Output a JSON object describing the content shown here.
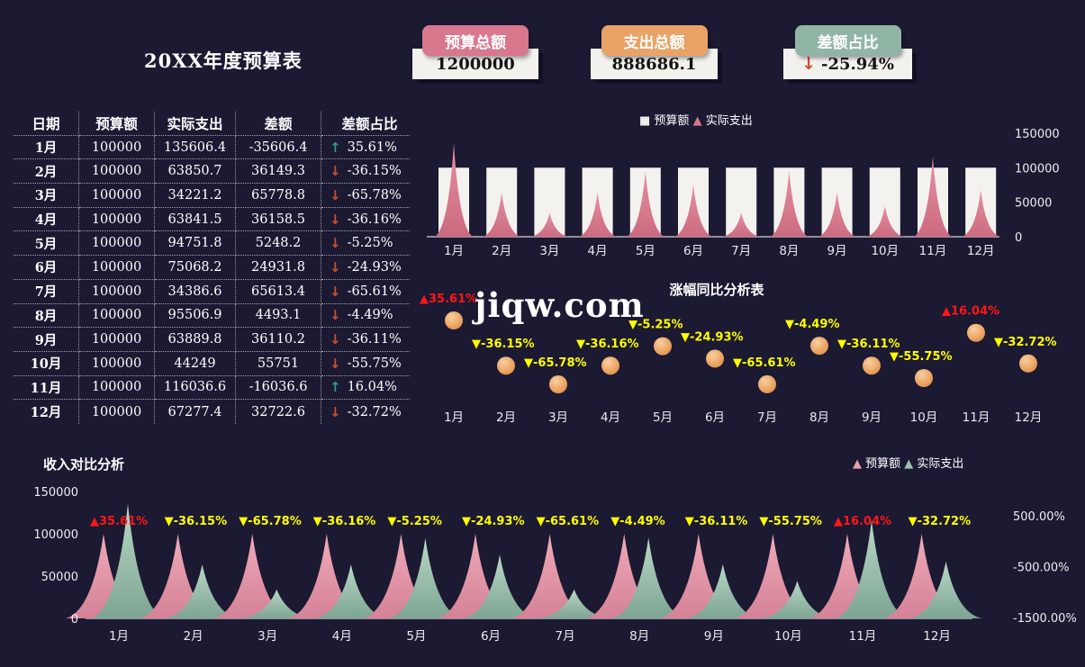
{
  "title": "20XX年度预算表",
  "watermark": "jiqw.com",
  "colors": {
    "background": "#1c1932",
    "card_pink": "#d9778c",
    "card_orange": "#e9a366",
    "card_green": "#90b5a5",
    "bar_white": "#f4f2ef",
    "spike_pink": "#d5788a",
    "area_pink": "#e49aa9",
    "area_green": "#9cc2af",
    "point_orange": "#e89a5c",
    "label_yellow": "#ffff00",
    "label_red": "#ff1616",
    "arrow_up": "#2f9b8a",
    "arrow_down": "#c8502a"
  },
  "summary_cards": [
    {
      "label": "预算总额",
      "value": "1200000",
      "accent": "#d9778c"
    },
    {
      "label": "支出总额",
      "value": "888686.1",
      "accent": "#e9a366"
    },
    {
      "label": "差额占比",
      "value": "-25.94%",
      "accent": "#90b5a5",
      "arrow": "down"
    }
  ],
  "table": {
    "headers": [
      "日期",
      "预算额",
      "实际支出",
      "差额",
      "差额占比"
    ],
    "rows": [
      {
        "date": "1月",
        "budget": "100000",
        "actual": "135606.4",
        "diff": "-35606.4",
        "trend": "up",
        "ratio": "35.61%"
      },
      {
        "date": "2月",
        "budget": "100000",
        "actual": "63850.7",
        "diff": "36149.3",
        "trend": "down",
        "ratio": "-36.15%"
      },
      {
        "date": "3月",
        "budget": "100000",
        "actual": "34221.2",
        "diff": "65778.8",
        "trend": "down",
        "ratio": "-65.78%"
      },
      {
        "date": "4月",
        "budget": "100000",
        "actual": "63841.5",
        "diff": "36158.5",
        "trend": "down",
        "ratio": "-36.16%"
      },
      {
        "date": "5月",
        "budget": "100000",
        "actual": "94751.8",
        "diff": "5248.2",
        "trend": "down",
        "ratio": "-5.25%"
      },
      {
        "date": "6月",
        "budget": "100000",
        "actual": "75068.2",
        "diff": "24931.8",
        "trend": "down",
        "ratio": "-24.93%"
      },
      {
        "date": "7月",
        "budget": "100000",
        "actual": "34386.6",
        "diff": "65613.4",
        "trend": "down",
        "ratio": "-65.61%"
      },
      {
        "date": "8月",
        "budget": "100000",
        "actual": "95506.9",
        "diff": "4493.1",
        "trend": "down",
        "ratio": "-4.49%"
      },
      {
        "date": "9月",
        "budget": "100000",
        "actual": "63889.8",
        "diff": "36110.2",
        "trend": "down",
        "ratio": "-36.11%"
      },
      {
        "date": "10月",
        "budget": "100000",
        "actual": "44249",
        "diff": "55751",
        "trend": "down",
        "ratio": "-55.75%"
      },
      {
        "date": "11月",
        "budget": "100000",
        "actual": "116036.6",
        "diff": "-16036.6",
        "trend": "up",
        "ratio": "16.04%"
      },
      {
        "date": "12月",
        "budget": "100000",
        "actual": "67277.4",
        "diff": "32722.6",
        "trend": "down",
        "ratio": "-32.72%"
      }
    ]
  },
  "chart_data": [
    {
      "id": "budget-vs-actual",
      "type": "bar",
      "subtype": "bar-with-spike-area",
      "categories": [
        "1月",
        "2月",
        "3月",
        "4月",
        "5月",
        "6月",
        "7月",
        "8月",
        "9月",
        "10月",
        "11月",
        "12月"
      ],
      "series": [
        {
          "name": "预算额",
          "type": "bar",
          "color": "#f4f2ef",
          "values": [
            100000,
            100000,
            100000,
            100000,
            100000,
            100000,
            100000,
            100000,
            100000,
            100000,
            100000,
            100000
          ]
        },
        {
          "name": "实际支出",
          "type": "area",
          "color": "#d5788a",
          "values": [
            135606.4,
            63850.7,
            34221.2,
            63841.5,
            94751.8,
            75068.2,
            34386.6,
            95506.9,
            63889.8,
            44249,
            116036.6,
            67277.4
          ]
        }
      ],
      "legend": [
        {
          "label": "预算额",
          "marker": "■",
          "color": "#efedea"
        },
        {
          "label": "实际支出",
          "marker": "▲",
          "color": "#d5788a"
        }
      ],
      "ylim": [
        0,
        150000
      ],
      "yticks": [
        "0",
        "50000",
        "100000",
        "150000"
      ],
      "yaxis_side": "right",
      "legend_position": "top-center",
      "grid": false
    },
    {
      "id": "yoy-analysis",
      "type": "scatter",
      "title": "涨幅同比分析表",
      "categories": [
        "1月",
        "2月",
        "3月",
        "4月",
        "5月",
        "6月",
        "7月",
        "8月",
        "9月",
        "10月",
        "11月",
        "12月"
      ],
      "values": [
        35.61,
        -36.15,
        -65.78,
        -36.16,
        -5.25,
        -24.93,
        -65.61,
        -4.49,
        -36.11,
        -55.75,
        16.04,
        -32.72
      ],
      "labels": [
        {
          "text": "▲35.61%",
          "color": "red"
        },
        {
          "text": "▼-36.15%",
          "color": "yellow"
        },
        {
          "text": "▼-65.78%",
          "color": "yellow"
        },
        {
          "text": "▼-36.16%",
          "color": "yellow"
        },
        {
          "text": "▼-5.25%",
          "color": "yellow"
        },
        {
          "text": "▼-24.93%",
          "color": "yellow"
        },
        {
          "text": "▼-65.61%",
          "color": "yellow"
        },
        {
          "text": "▼-4.49%",
          "color": "yellow"
        },
        {
          "text": "▼-36.11%",
          "color": "yellow"
        },
        {
          "text": "▼-55.75%",
          "color": "yellow"
        },
        {
          "text": "▲16.04%",
          "color": "red"
        },
        {
          "text": "▼-32.72%",
          "color": "yellow"
        }
      ],
      "point_color": "#e89a5c",
      "grid": false
    },
    {
      "id": "income-compare",
      "type": "area",
      "title": "收入对比分析",
      "categories": [
        "1月",
        "2月",
        "3月",
        "4月",
        "5月",
        "6月",
        "7月",
        "8月",
        "9月",
        "10月",
        "11月",
        "12月"
      ],
      "series": [
        {
          "name": "预算额",
          "color": "#e49aa9",
          "values": [
            100000,
            100000,
            100000,
            100000,
            100000,
            100000,
            100000,
            100000,
            100000,
            100000,
            100000,
            100000
          ]
        },
        {
          "name": "实际支出",
          "color": "#9cc2af",
          "values": [
            135606.4,
            63850.7,
            34221.2,
            63841.5,
            94751.8,
            75068.2,
            34386.6,
            95506.9,
            63889.8,
            44249,
            116036.6,
            67277.4
          ]
        }
      ],
      "legend": [
        {
          "label": "预算额",
          "marker": "▲",
          "color": "#e8a0ae"
        },
        {
          "label": "实际支出",
          "marker": "▲",
          "color": "#9cc2af"
        }
      ],
      "labels": [
        {
          "text": "▲35.61%",
          "color": "red"
        },
        {
          "text": "▼-36.15%",
          "color": "yellow"
        },
        {
          "text": "▼-65.78%",
          "color": "yellow"
        },
        {
          "text": "▼-36.16%",
          "color": "yellow"
        },
        {
          "text": "▼-5.25%",
          "color": "yellow"
        },
        {
          "text": "▼-24.93%",
          "color": "yellow"
        },
        {
          "text": "▼-65.61%",
          "color": "yellow"
        },
        {
          "text": "▼-4.49%",
          "color": "yellow"
        },
        {
          "text": "▼-36.11%",
          "color": "yellow"
        },
        {
          "text": "▼-55.75%",
          "color": "yellow"
        },
        {
          "text": "▲16.04%",
          "color": "red"
        },
        {
          "text": "▼-32.72%",
          "color": "yellow"
        }
      ],
      "ylim": [
        0,
        150000
      ],
      "yticks_left": [
        "0",
        "50000",
        "100000",
        "150000"
      ],
      "yticks_right": [
        "500.00%",
        "-500.00%",
        "-1500.00%"
      ],
      "legend_position": "top-right",
      "grid": false
    }
  ]
}
